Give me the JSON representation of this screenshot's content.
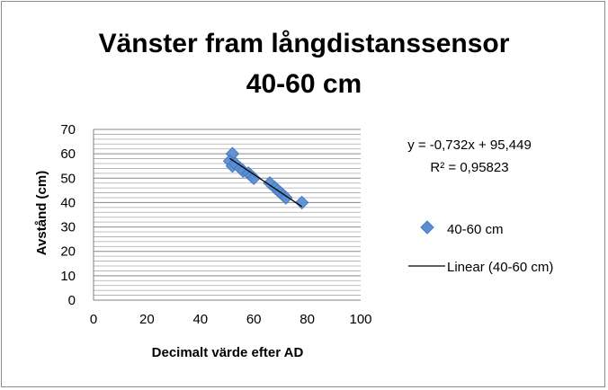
{
  "chart_data": {
    "type": "scatter",
    "title": [
      "Vänster fram långdistanssensor",
      "40-60 cm"
    ],
    "xlabel": "Decimalt värde efter AD",
    "ylabel": "Avstånd (cm)",
    "xlim": [
      0,
      100
    ],
    "ylim": [
      0,
      70
    ],
    "xticks": [
      "0",
      "20",
      "40",
      "60",
      "80",
      "100"
    ],
    "yticks": [
      "0",
      "10",
      "20",
      "30",
      "40",
      "50",
      "60",
      "70"
    ],
    "grid": "horizontal-minor",
    "series": [
      {
        "name": "40-60 cm",
        "color": "#5b8fd4",
        "marker": "diamond",
        "x": [
          52,
          51,
          52,
          53,
          55,
          56,
          58,
          59,
          60,
          66,
          68,
          69,
          70,
          71,
          72,
          78
        ],
        "y": [
          60,
          57,
          55,
          56,
          54,
          53,
          52,
          51,
          50,
          48,
          46,
          45,
          44,
          43,
          42,
          40
        ]
      }
    ],
    "trendline": {
      "name": "Linear (40-60 cm)",
      "type": "linear",
      "slope": -0.732,
      "intercept": 95.449,
      "x_range": [
        51,
        78
      ],
      "equation_text": "y = -0,732x + 95,449",
      "r2_text": "R² = 0,95823",
      "color": "#000000"
    },
    "legend": {
      "position": "right",
      "entries": [
        "40-60 cm",
        "Linear (40-60 cm)"
      ]
    }
  }
}
